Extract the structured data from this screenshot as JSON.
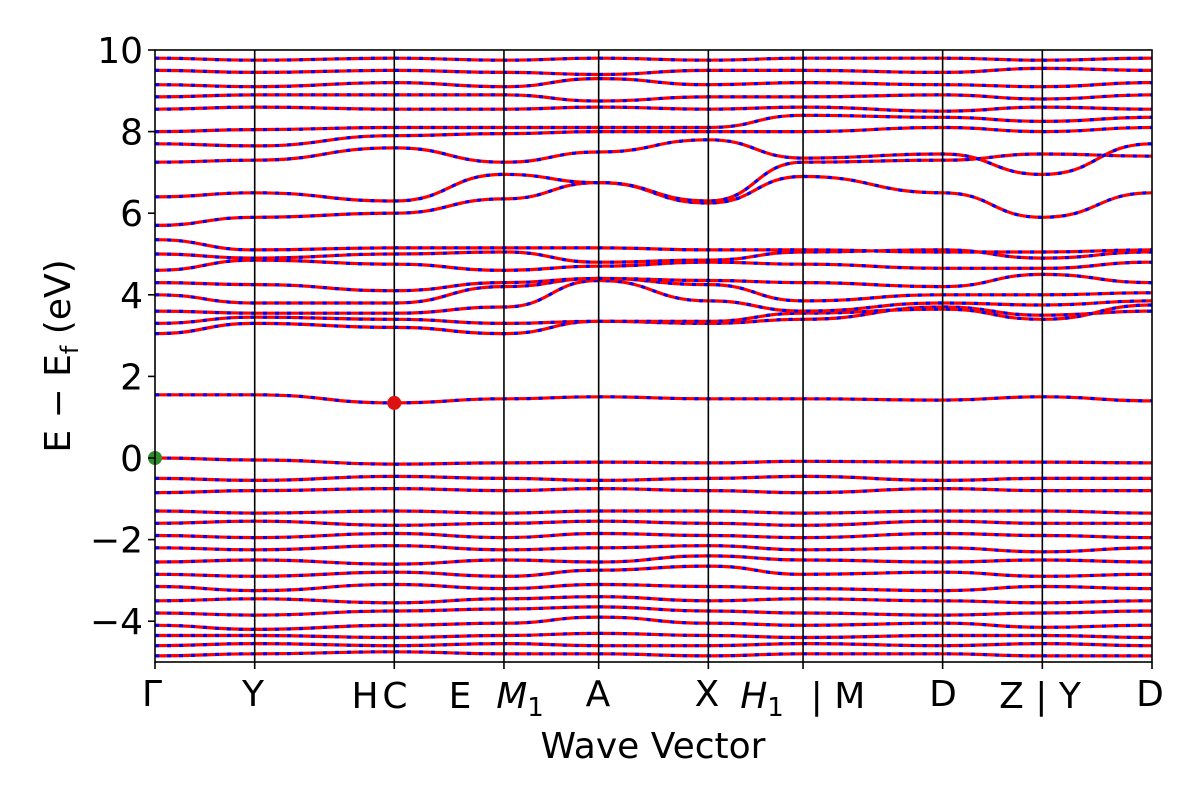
{
  "chart_data": {
    "type": "line",
    "title": "",
    "xlabel": "Wave Vector",
    "ylabel": "E − E",
    "ylabel_sub": "f",
    "ylabel_unit": " (eV)",
    "ylim": [
      -5,
      10
    ],
    "yticks": [
      -4,
      -2,
      0,
      2,
      4,
      6,
      8,
      10
    ],
    "xlim": [
      0,
      10
    ],
    "kpath": [
      {
        "label": "Γ",
        "x": 0.0
      },
      {
        "label": "Y",
        "x": 1.0
      },
      {
        "label": "H|C",
        "x": 2.4
      },
      {
        "label": "E|M",
        "x": 3.5
      },
      {
        "label": "A",
        "x": 4.45
      },
      {
        "label": "X",
        "x": 5.55
      },
      {
        "label": "H1|M",
        "x": 6.5
      },
      {
        "label": "D",
        "x": 7.9
      },
      {
        "label": "Z|Y",
        "x": 8.9
      },
      {
        "label": "D",
        "x": 10.0
      }
    ],
    "xtick_labels": [
      "Γ",
      "Y",
      "H",
      "C",
      "E",
      "M",
      "A",
      "X",
      "H",
      "| M",
      "D",
      "Z | Y",
      "D"
    ],
    "xtick_label_subs": [
      "1",
      "1"
    ],
    "band_colors": {
      "spin_up": "#ff0000",
      "spin_down": "#0000ff"
    },
    "highlight_points": [
      {
        "name": "vbm",
        "x": 0.0,
        "y": 0.0,
        "color": "#2e8b2e"
      },
      {
        "name": "cbm",
        "x": 2.4,
        "y": 1.35,
        "color": "#dd1111"
      }
    ],
    "bands": [
      [
        -4.85,
        -4.8,
        -4.75,
        -4.8,
        -4.8,
        -4.85,
        -4.8,
        -4.8,
        -4.85,
        -4.85
      ],
      [
        -4.6,
        -4.55,
        -4.6,
        -4.55,
        -4.6,
        -4.6,
        -4.55,
        -4.6,
        -4.55,
        -4.6
      ],
      [
        -4.35,
        -4.35,
        -4.4,
        -4.35,
        -4.3,
        -4.35,
        -4.4,
        -4.35,
        -4.35,
        -4.4
      ],
      [
        -4.1,
        -4.2,
        -4.1,
        -4.05,
        -3.9,
        -4.05,
        -4.1,
        -4.05,
        -4.15,
        -4.1
      ],
      [
        -3.8,
        -3.85,
        -3.75,
        -3.7,
        -3.65,
        -3.75,
        -3.8,
        -3.85,
        -3.8,
        -3.75
      ],
      [
        -3.5,
        -3.45,
        -3.55,
        -3.45,
        -3.4,
        -3.5,
        -3.45,
        -3.5,
        -3.55,
        -3.5
      ],
      [
        -3.15,
        -3.25,
        -3.1,
        -3.2,
        -3.1,
        -3.15,
        -3.2,
        -3.25,
        -3.15,
        -3.2
      ],
      [
        -2.85,
        -2.9,
        -2.8,
        -2.9,
        -2.75,
        -2.65,
        -2.85,
        -2.8,
        -2.9,
        -2.85
      ],
      [
        -2.55,
        -2.5,
        -2.6,
        -2.5,
        -2.55,
        -2.4,
        -2.5,
        -2.55,
        -2.5,
        -2.55
      ],
      [
        -2.2,
        -2.25,
        -2.15,
        -2.25,
        -2.2,
        -2.15,
        -2.25,
        -2.2,
        -2.3,
        -2.2
      ],
      [
        -1.9,
        -1.95,
        -1.85,
        -1.95,
        -1.85,
        -1.9,
        -1.95,
        -1.85,
        -1.9,
        -1.95
      ],
      [
        -1.6,
        -1.55,
        -1.65,
        -1.6,
        -1.55,
        -1.6,
        -1.65,
        -1.55,
        -1.6,
        -1.6
      ],
      [
        -1.3,
        -1.35,
        -1.3,
        -1.35,
        -1.3,
        -1.3,
        -1.35,
        -1.3,
        -1.3,
        -1.35
      ],
      [
        -0.85,
        -0.8,
        -0.75,
        -0.8,
        -0.75,
        -0.8,
        -0.85,
        -0.75,
        -0.8,
        -0.8
      ],
      [
        -0.5,
        -0.55,
        -0.45,
        -0.5,
        -0.55,
        -0.5,
        -0.45,
        -0.55,
        -0.5,
        -0.5
      ],
      [
        0.0,
        -0.05,
        -0.15,
        -0.12,
        -0.1,
        -0.12,
        -0.08,
        -0.1,
        -0.1,
        -0.12
      ],
      [
        1.55,
        1.55,
        1.35,
        1.45,
        1.5,
        1.45,
        1.45,
        1.42,
        1.5,
        1.4
      ],
      [
        3.05,
        3.3,
        3.2,
        3.05,
        3.35,
        3.3,
        3.4,
        3.7,
        3.5,
        3.6
      ],
      [
        3.3,
        3.45,
        3.4,
        3.3,
        3.35,
        3.35,
        3.55,
        3.65,
        3.4,
        3.75
      ],
      [
        3.6,
        3.55,
        3.55,
        3.7,
        4.35,
        3.85,
        3.6,
        3.8,
        3.75,
        3.85
      ],
      [
        4.0,
        3.8,
        3.8,
        4.2,
        4.4,
        4.25,
        3.85,
        4.0,
        4.0,
        4.05
      ],
      [
        4.3,
        4.25,
        4.1,
        4.3,
        4.4,
        4.35,
        4.3,
        4.2,
        4.5,
        4.3
      ],
      [
        4.6,
        4.85,
        4.75,
        4.6,
        4.7,
        4.8,
        4.75,
        4.65,
        4.65,
        4.8
      ],
      [
        5.0,
        4.9,
        5.0,
        5.05,
        4.8,
        4.85,
        5.05,
        5.1,
        4.9,
        5.05
      ],
      [
        5.35,
        5.1,
        5.15,
        5.15,
        5.15,
        5.1,
        5.1,
        5.05,
        5.05,
        5.1
      ],
      [
        5.7,
        5.9,
        6.0,
        6.35,
        6.75,
        6.25,
        6.9,
        6.5,
        5.9,
        6.5
      ],
      [
        6.4,
        6.5,
        6.3,
        6.95,
        6.75,
        6.3,
        7.25,
        7.3,
        7.45,
        7.4
      ],
      [
        7.25,
        7.3,
        7.6,
        7.25,
        7.5,
        7.8,
        7.35,
        7.45,
        6.95,
        7.7
      ],
      [
        7.7,
        7.65,
        7.9,
        7.95,
        8.0,
        8.0,
        8.0,
        8.1,
        8.0,
        8.1
      ],
      [
        8.0,
        8.05,
        8.1,
        8.1,
        8.1,
        8.1,
        8.4,
        8.35,
        8.25,
        8.35
      ],
      [
        8.55,
        8.6,
        8.55,
        8.55,
        8.6,
        8.55,
        8.6,
        8.5,
        8.6,
        8.55
      ],
      [
        8.85,
        8.9,
        8.9,
        8.9,
        8.75,
        8.85,
        8.85,
        8.9,
        8.8,
        8.9
      ],
      [
        9.15,
        9.1,
        9.2,
        9.1,
        9.3,
        9.15,
        9.2,
        9.15,
        9.1,
        9.2
      ],
      [
        9.5,
        9.45,
        9.5,
        9.45,
        9.4,
        9.5,
        9.5,
        9.45,
        9.55,
        9.5
      ],
      [
        9.8,
        9.75,
        9.8,
        9.75,
        9.8,
        9.75,
        9.8,
        9.8,
        9.75,
        9.8
      ]
    ]
  }
}
